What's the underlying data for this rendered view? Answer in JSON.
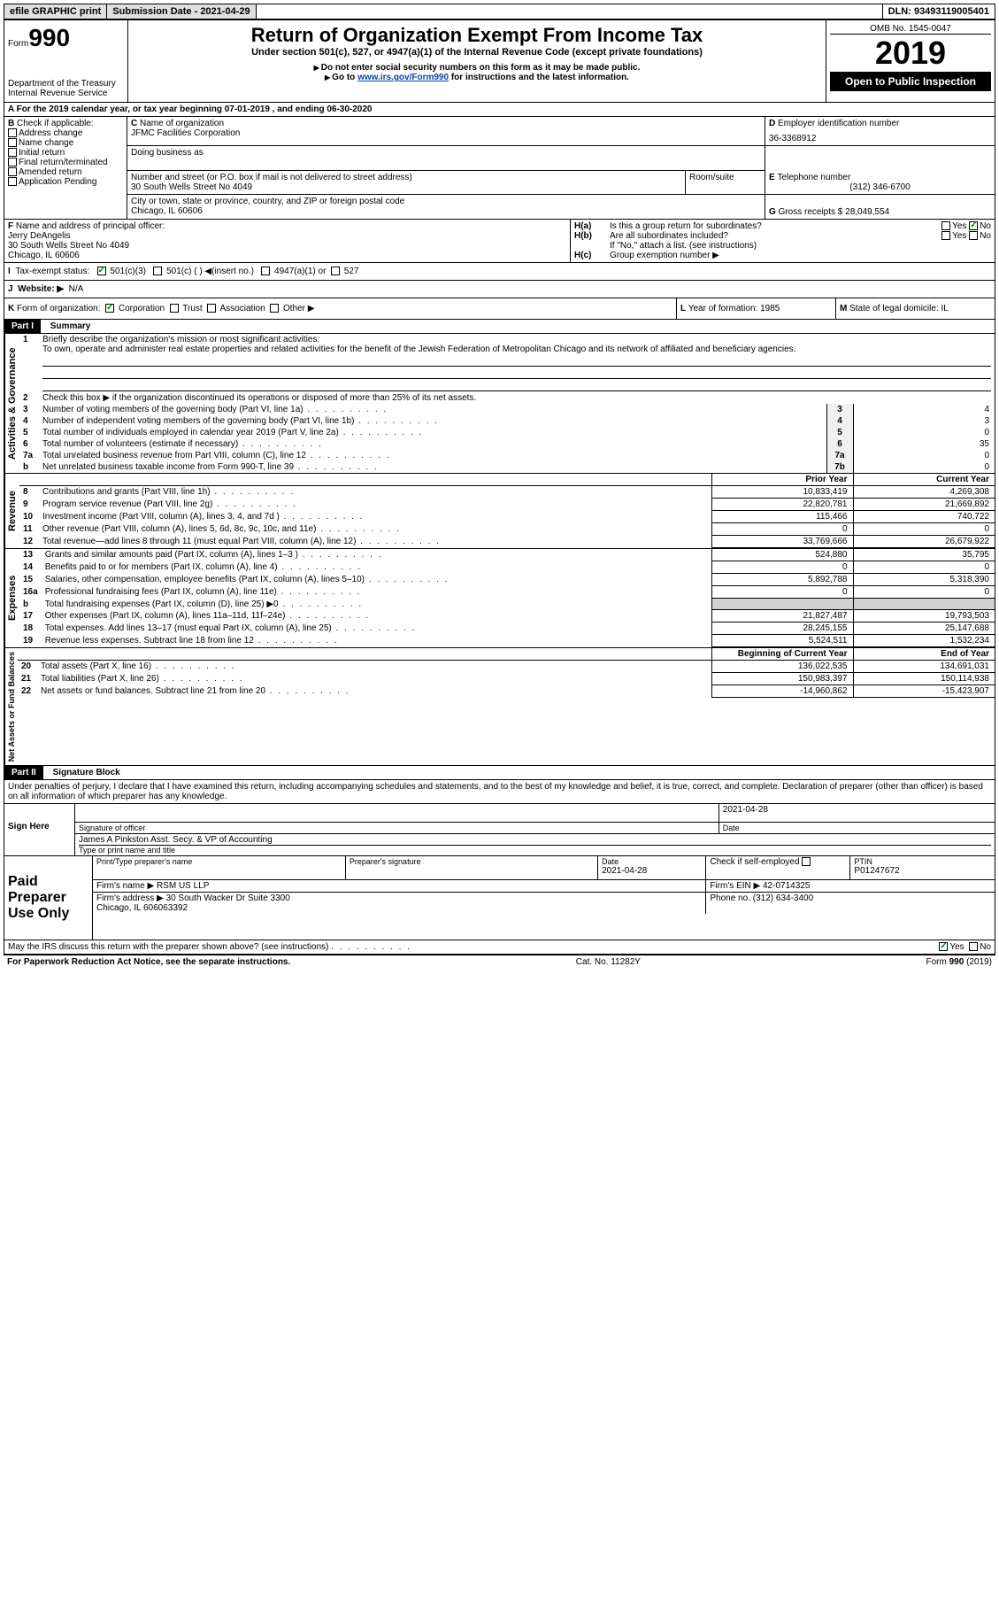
{
  "topbar": {
    "efile": "efile GRAPHIC print",
    "sub_label": "Submission Date - 2021-04-29",
    "dln": "DLN: 93493119005401"
  },
  "header": {
    "form_word": "Form",
    "form_num": "990",
    "dept": "Department of the Treasury\nInternal Revenue Service",
    "title": "Return of Organization Exempt From Income Tax",
    "subtitle": "Under section 501(c), 527, or 4947(a)(1) of the Internal Revenue Code (except private foundations)",
    "note1": "Do not enter social security numbers on this form as it may be made public.",
    "note2_pre": "Go to ",
    "note2_link": "www.irs.gov/Form990",
    "note2_post": " for instructions and the latest information.",
    "omb": "OMB No. 1545-0047",
    "year": "2019",
    "open": "Open to Public Inspection"
  },
  "A": {
    "line": "For the 2019 calendar year, or tax year beginning 07-01-2019   , and ending 06-30-2020"
  },
  "B": {
    "label": "Check if applicable:",
    "opts": [
      "Address change",
      "Name change",
      "Initial return",
      "Final return/terminated",
      "Amended return",
      "Application Pending"
    ]
  },
  "C": {
    "label": "Name of organization",
    "name": "JFMC Facilities Corporation",
    "dba_label": "Doing business as",
    "addr_label": "Number and street (or P.O. box if mail is not delivered to street address)",
    "room_label": "Room/suite",
    "addr": "30 South Wells Street No 4049",
    "city_label": "City or town, state or province, country, and ZIP or foreign postal code",
    "city": "Chicago, IL  60606"
  },
  "D": {
    "label": "Employer identification number",
    "val": "36-3368912"
  },
  "E": {
    "label": "Telephone number",
    "val": "(312) 346-6700"
  },
  "G": {
    "label": "Gross receipts $",
    "val": "28,049,554"
  },
  "F": {
    "label": "Name and address of principal officer:",
    "name": "Jerry DeAngelis",
    "addr": "30 South Wells Street No 4049\nChicago, IL  60606"
  },
  "H": {
    "a": "Is this a group return for subordinates?",
    "b": "Are all subordinates included?",
    "b_note": "If \"No,\" attach a list. (see instructions)",
    "c": "Group exemption number ▶",
    "yes": "Yes",
    "no": "No"
  },
  "I": {
    "label": "Tax-exempt status:",
    "o1": "501(c)(3)",
    "o2": "501(c) (  )",
    "o2b": "(insert no.)",
    "o3": "4947(a)(1) or",
    "o4": "527"
  },
  "J": {
    "label": "Website: ▶",
    "val": "N/A"
  },
  "K": {
    "label": "Form of organization:",
    "o1": "Corporation",
    "o2": "Trust",
    "o3": "Association",
    "o4": "Other ▶"
  },
  "L": {
    "label": "Year of formation:",
    "val": "1985"
  },
  "M": {
    "label": "State of legal domicile:",
    "val": "IL"
  },
  "partI": {
    "hdr": "Part I",
    "title": "Summary",
    "l1": "Briefly describe the organization's mission or most significant activities:",
    "mission": "To own, operate and administer real estate properties and related activities for the benefit of the Jewish Federation of Metropolitan Chicago and its network of affiliated and beneficiary agencies.",
    "l2": "Check this box ▶       if the organization discontinued its operations or disposed of more than 25% of its net assets.",
    "rows_gov": [
      {
        "n": "3",
        "t": "Number of voting members of the governing body (Part VI, line 1a)",
        "box": "3",
        "v": "4"
      },
      {
        "n": "4",
        "t": "Number of independent voting members of the governing body (Part VI, line 1b)",
        "box": "4",
        "v": "3"
      },
      {
        "n": "5",
        "t": "Total number of individuals employed in calendar year 2019 (Part V, line 2a)",
        "box": "5",
        "v": "0"
      },
      {
        "n": "6",
        "t": "Total number of volunteers (estimate if necessary)",
        "box": "6",
        "v": "35"
      },
      {
        "n": "7a",
        "t": "Total unrelated business revenue from Part VIII, column (C), line 12",
        "box": "7a",
        "v": "0"
      },
      {
        "n": "b",
        "t": "Net unrelated business taxable income from Form 990-T, line 39",
        "box": "7b",
        "v": "0"
      }
    ],
    "col_py": "Prior Year",
    "col_cy": "Current Year",
    "rows_rev": [
      {
        "n": "8",
        "t": "Contributions and grants (Part VIII, line 1h)",
        "py": "10,833,419",
        "cy": "4,269,308"
      },
      {
        "n": "9",
        "t": "Program service revenue (Part VIII, line 2g)",
        "py": "22,820,781",
        "cy": "21,669,892"
      },
      {
        "n": "10",
        "t": "Investment income (Part VIII, column (A), lines 3, 4, and 7d )",
        "py": "115,466",
        "cy": "740,722"
      },
      {
        "n": "11",
        "t": "Other revenue (Part VIII, column (A), lines 5, 6d, 8c, 9c, 10c, and 11e)",
        "py": "0",
        "cy": "0"
      },
      {
        "n": "12",
        "t": "Total revenue—add lines 8 through 11 (must equal Part VIII, column (A), line 12)",
        "py": "33,769,666",
        "cy": "26,679,922"
      }
    ],
    "rows_exp": [
      {
        "n": "13",
        "t": "Grants and similar amounts paid (Part IX, column (A), lines 1–3 )",
        "py": "524,880",
        "cy": "35,795"
      },
      {
        "n": "14",
        "t": "Benefits paid to or for members (Part IX, column (A), line 4)",
        "py": "0",
        "cy": "0"
      },
      {
        "n": "15",
        "t": "Salaries, other compensation, employee benefits (Part IX, column (A), lines 5–10)",
        "py": "5,892,788",
        "cy": "5,318,390"
      },
      {
        "n": "16a",
        "t": "Professional fundraising fees (Part IX, column (A), line 11e)",
        "py": "0",
        "cy": "0"
      },
      {
        "n": "b",
        "t": "Total fundraising expenses (Part IX, column (D), line 25) ▶0",
        "py": "",
        "cy": "",
        "shade": true
      },
      {
        "n": "17",
        "t": "Other expenses (Part IX, column (A), lines 11a–11d, 11f–24e)",
        "py": "21,827,487",
        "cy": "19,793,503"
      },
      {
        "n": "18",
        "t": "Total expenses. Add lines 13–17 (must equal Part IX, column (A), line 25)",
        "py": "28,245,155",
        "cy": "25,147,688"
      },
      {
        "n": "19",
        "t": "Revenue less expenses. Subtract line 18 from line 12",
        "py": "5,524,511",
        "cy": "1,532,234"
      }
    ],
    "col_boy": "Beginning of Current Year",
    "col_eoy": "End of Year",
    "rows_na": [
      {
        "n": "20",
        "t": "Total assets (Part X, line 16)",
        "py": "136,022,535",
        "cy": "134,691,031"
      },
      {
        "n": "21",
        "t": "Total liabilities (Part X, line 26)",
        "py": "150,983,397",
        "cy": "150,114,938"
      },
      {
        "n": "22",
        "t": "Net assets or fund balances. Subtract line 21 from line 20",
        "py": "-14,960,862",
        "cy": "-15,423,907"
      }
    ],
    "vlab_gov": "Activities & Governance",
    "vlab_rev": "Revenue",
    "vlab_exp": "Expenses",
    "vlab_na": "Net Assets or Fund Balances"
  },
  "partII": {
    "hdr": "Part II",
    "title": "Signature Block",
    "perjury": "Under penalties of perjury, I declare that I have examined this return, including accompanying schedules and statements, and to the best of my knowledge and belief, it is true, correct, and complete. Declaration of preparer (other than officer) is based on all information of which preparer has any knowledge.",
    "sign_here": "Sign Here",
    "sig_officer": "Signature of officer",
    "sig_date": "2021-04-28",
    "date_lbl": "Date",
    "officer_name": "James A Pinkston  Asst. Secy. & VP of Accounting",
    "type_name": "Type or print name and title",
    "paid": "Paid Preparer Use Only",
    "prep_name_lbl": "Print/Type preparer's name",
    "prep_sig_lbl": "Preparer's signature",
    "prep_date": "2021-04-28",
    "check_self": "Check        if self-employed",
    "ptin_lbl": "PTIN",
    "ptin": "P01247672",
    "firm_name_lbl": "Firm's name  ▶",
    "firm_name": "RSM US LLP",
    "firm_ein_lbl": "Firm's EIN ▶",
    "firm_ein": "42-0714325",
    "firm_addr_lbl": "Firm's address ▶",
    "firm_addr": "30 South Wacker Dr Suite 3300\nChicago, IL  606063392",
    "phone_lbl": "Phone no.",
    "phone": "(312) 634-3400",
    "discuss": "May the IRS discuss this return with the preparer shown above? (see instructions)"
  },
  "footer": {
    "l": "For Paperwork Reduction Act Notice, see the separate instructions.",
    "c": "Cat. No. 11282Y",
    "r": "Form 990 (2019)"
  }
}
